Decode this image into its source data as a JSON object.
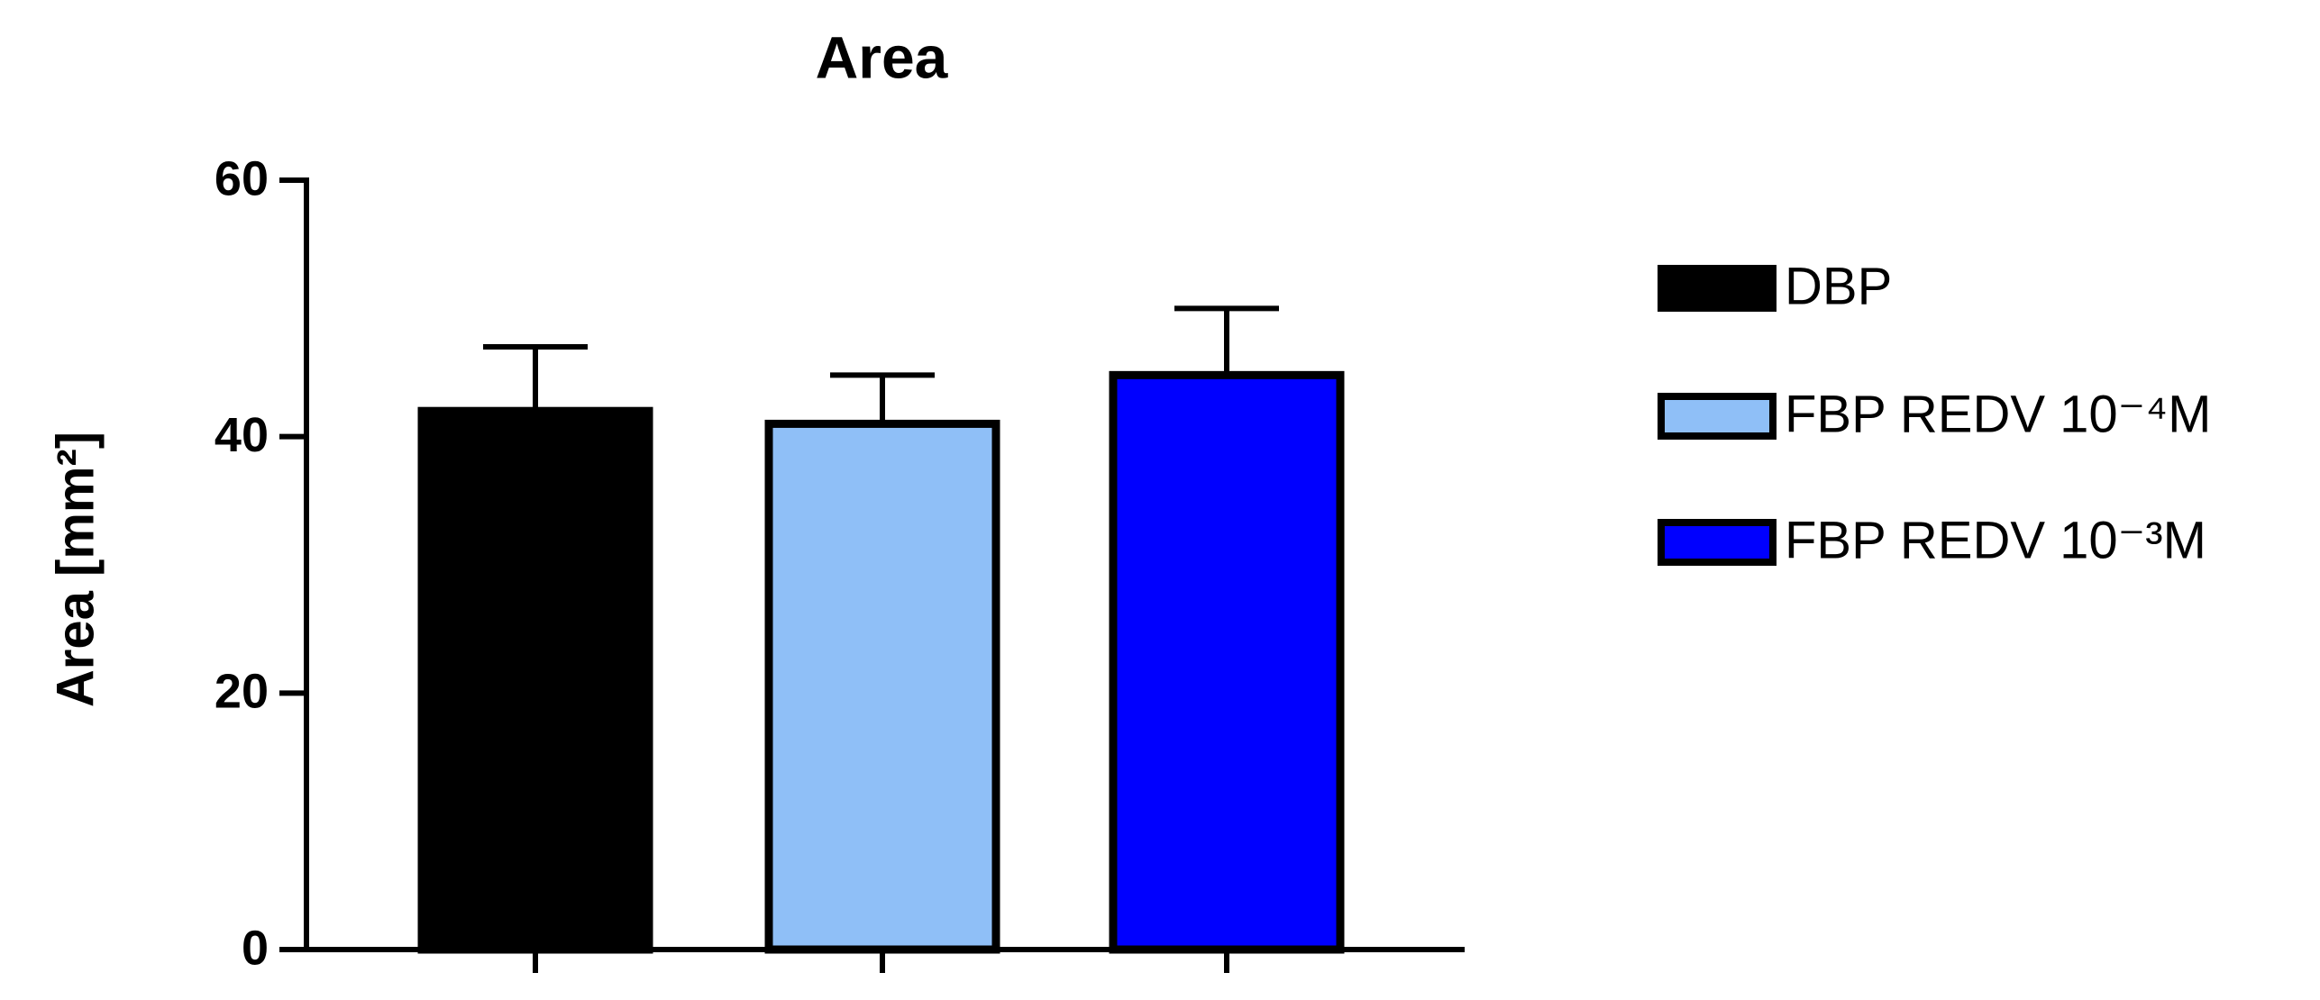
{
  "chart_data": {
    "type": "bar",
    "title": "Area",
    "y_label": "Area [mm²]",
    "categories": [
      null,
      null,
      null
    ],
    "series": [
      {
        "name": "DBP",
        "color": "#000000",
        "values": [
          42,
          null,
          null
        ],
        "errors": [
          5,
          null,
          null
        ]
      },
      {
        "name": "FBP REDV 10⁻⁴M",
        "color": "#8fbff7",
        "values": [
          null,
          41,
          null
        ],
        "errors": [
          null,
          3.8,
          null
        ]
      },
      {
        "name": "FBP REDV 10⁻³M",
        "color": "#0000ff",
        "values": [
          null,
          null,
          44.8
        ],
        "errors": [
          null,
          null,
          5.2
        ]
      }
    ],
    "ylim": [
      0,
      60
    ],
    "yticks": [
      0,
      20,
      40,
      60
    ]
  }
}
